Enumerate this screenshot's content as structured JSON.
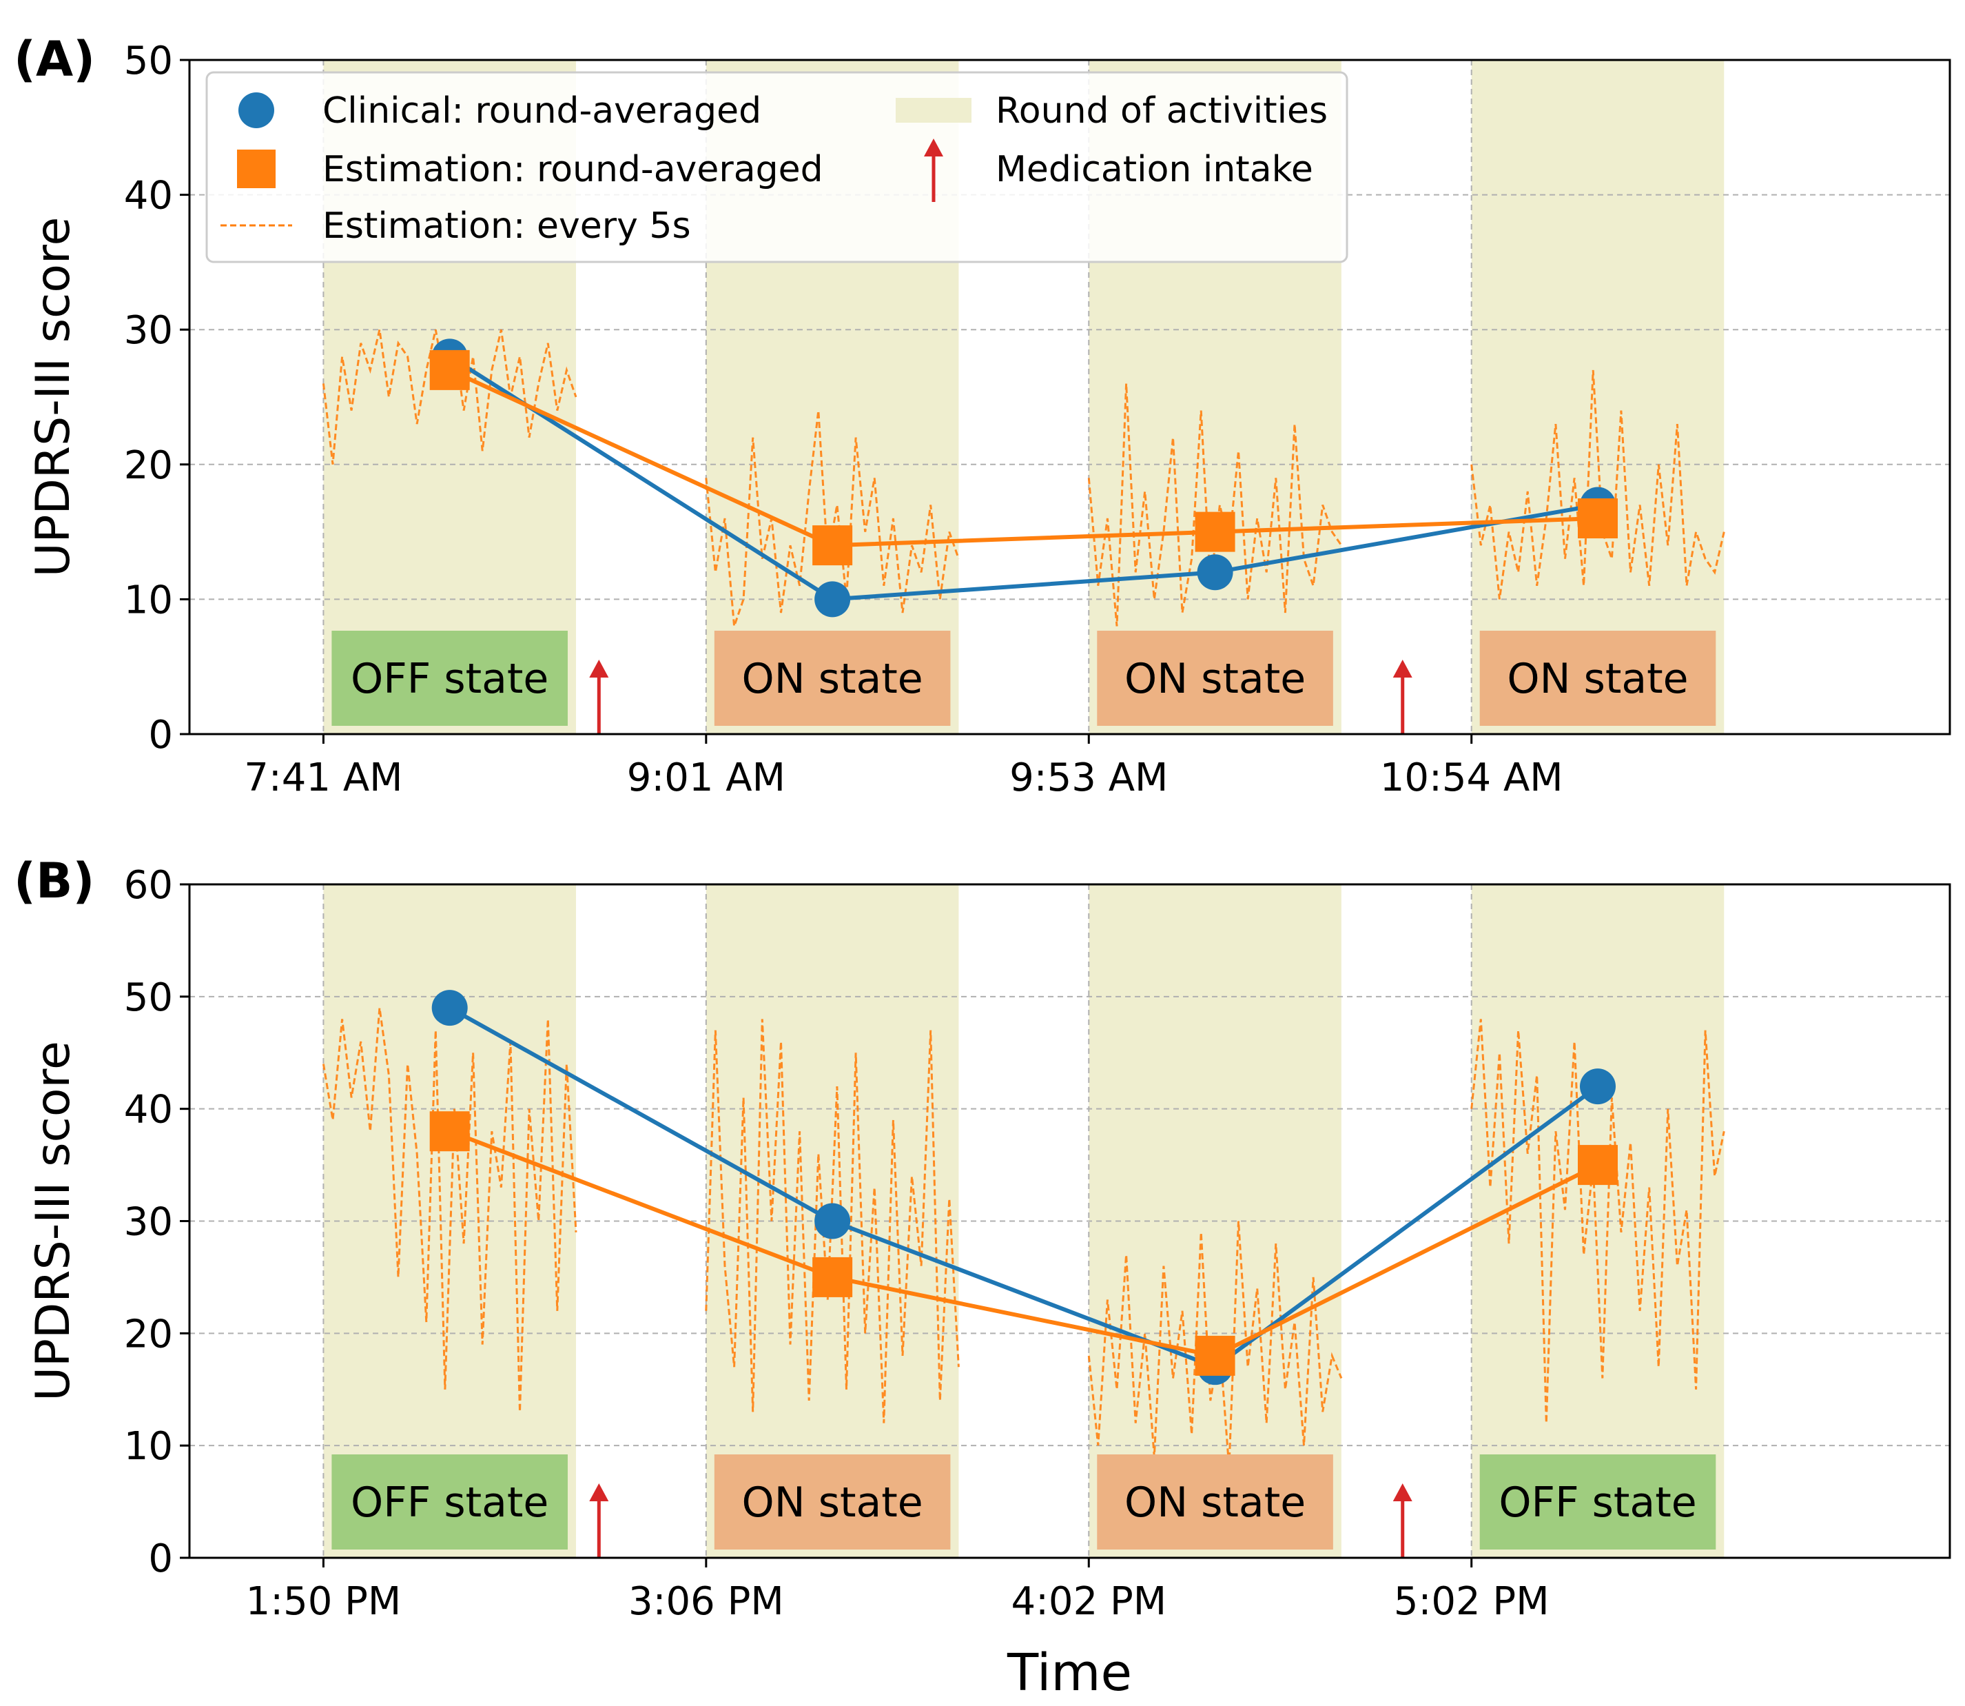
{
  "chart_data": [
    {
      "panel_label": "(A)",
      "type": "line",
      "ylabel": "UPDRS-III score",
      "xlabel": "",
      "ylim": [
        0,
        50
      ],
      "yticks": [
        0,
        10,
        20,
        30,
        40,
        50
      ],
      "xlim": [
        -0.35,
        4.25
      ],
      "round_ranges": [
        [
          0,
          0.66
        ],
        [
          1,
          1.66
        ],
        [
          2,
          2.66
        ],
        [
          3,
          3.66
        ]
      ],
      "xticks": [
        {
          "pos": 0,
          "label": "7:41 AM"
        },
        {
          "pos": 1,
          "label": "9:01 AM"
        },
        {
          "pos": 2,
          "label": "9:53 AM"
        },
        {
          "pos": 3,
          "label": "10:54 AM"
        }
      ],
      "state_labels": [
        {
          "text": "OFF state",
          "state": "off",
          "pos": 0.33
        },
        {
          "text": "ON state",
          "state": "on",
          "pos": 1.33
        },
        {
          "text": "ON state",
          "state": "on",
          "pos": 2.33
        },
        {
          "text": "ON state",
          "state": "on",
          "pos": 3.33
        }
      ],
      "medication_positions": [
        0.72,
        2.82
      ],
      "series": [
        {
          "name": "Clinical: round-averaged",
          "x": [
            0.33,
            1.33,
            2.33,
            3.33
          ],
          "values": [
            28,
            10,
            12,
            17
          ]
        },
        {
          "name": "Estimation: round-averaged",
          "x": [
            0.33,
            1.33,
            2.33,
            3.33
          ],
          "values": [
            27,
            14,
            15,
            16
          ]
        }
      ],
      "estimation_5s": [
        [
          26,
          20,
          28,
          24,
          29,
          27,
          30,
          25,
          29,
          28,
          23,
          27,
          30,
          26,
          29,
          24,
          28,
          21,
          27,
          30,
          25,
          28,
          22,
          26,
          29,
          24,
          27,
          25
        ],
        [
          19,
          12,
          16,
          8,
          10,
          22,
          13,
          16,
          9,
          14,
          11,
          18,
          24,
          13,
          17,
          10,
          22,
          15,
          19,
          11,
          16,
          9,
          14,
          12,
          17,
          10,
          15,
          13
        ],
        [
          19,
          11,
          16,
          8,
          26,
          12,
          18,
          10,
          15,
          22,
          9,
          13,
          24,
          11,
          17,
          14,
          21,
          10,
          16,
          12,
          19,
          9,
          23,
          13,
          11,
          17,
          15,
          14
        ],
        [
          20,
          14,
          17,
          10,
          15,
          12,
          18,
          11,
          16,
          23,
          13,
          19,
          11,
          27,
          15,
          13,
          24,
          12,
          17,
          11,
          20,
          14,
          23,
          11,
          15,
          13,
          12,
          15
        ]
      ],
      "legend": {
        "clinical": "Clinical: round-averaged",
        "estimation": "Estimation: round-averaged",
        "estimation_5s": "Estimation: every 5s",
        "round": "Round of activities",
        "medication": "Medication intake",
        "location": "upper-left"
      }
    },
    {
      "panel_label": "(B)",
      "type": "line",
      "ylabel": "UPDRS-III score",
      "xlabel": "Time",
      "ylim": [
        0,
        60
      ],
      "yticks": [
        0,
        10,
        20,
        30,
        40,
        50,
        60
      ],
      "xlim": [
        -0.35,
        4.25
      ],
      "round_ranges": [
        [
          0,
          0.66
        ],
        [
          1,
          1.66
        ],
        [
          2,
          2.66
        ],
        [
          3,
          3.66
        ]
      ],
      "xticks": [
        {
          "pos": 0,
          "label": "1:50 PM"
        },
        {
          "pos": 1,
          "label": "3:06 PM"
        },
        {
          "pos": 2,
          "label": "4:02 PM"
        },
        {
          "pos": 3,
          "label": "5:02 PM"
        }
      ],
      "state_labels": [
        {
          "text": "OFF state",
          "state": "off",
          "pos": 0.33
        },
        {
          "text": "ON state",
          "state": "on",
          "pos": 1.33
        },
        {
          "text": "ON state",
          "state": "on",
          "pos": 2.33
        },
        {
          "text": "OFF state",
          "state": "off",
          "pos": 3.33
        }
      ],
      "medication_positions": [
        0.72,
        2.82
      ],
      "series": [
        {
          "name": "Clinical: round-averaged",
          "x": [
            0.33,
            1.33,
            2.33,
            3.33
          ],
          "values": [
            49,
            30,
            17,
            42
          ]
        },
        {
          "name": "Estimation: round-averaged",
          "x": [
            0.33,
            1.33,
            2.33,
            3.33
          ],
          "values": [
            38,
            25,
            18,
            35
          ]
        }
      ],
      "estimation_5s": [
        [
          44,
          39,
          48,
          41,
          46,
          38,
          49,
          43,
          25,
          44,
          36,
          21,
          47,
          15,
          40,
          28,
          45,
          19,
          38,
          33,
          46,
          13,
          40,
          30,
          48,
          22,
          44,
          29
        ],
        [
          22,
          47,
          26,
          17,
          41,
          13,
          48,
          30,
          46,
          19,
          38,
          14,
          36,
          23,
          42,
          15,
          45,
          20,
          33,
          12,
          39,
          18,
          34,
          26,
          47,
          14,
          32,
          17
        ],
        [
          18,
          10,
          23,
          15,
          27,
          12,
          20,
          9,
          26,
          16,
          22,
          11,
          29,
          14,
          19,
          8,
          30,
          17,
          24,
          12,
          28,
          15,
          21,
          10,
          25,
          13,
          18,
          16
        ],
        [
          40,
          48,
          33,
          45,
          28,
          47,
          36,
          43,
          12,
          38,
          31,
          46,
          27,
          35,
          16,
          41,
          29,
          37,
          22,
          33,
          17,
          40,
          26,
          31,
          15,
          47,
          34,
          38
        ]
      ],
      "legend": null
    }
  ],
  "colors": {
    "clinical": "#1f77b4",
    "estimation": "#ff7f0e",
    "round_band": "#efeecf",
    "off_box": "#9fcd7f",
    "on_box": "#edb283",
    "medication_arrow": "#d62728"
  }
}
